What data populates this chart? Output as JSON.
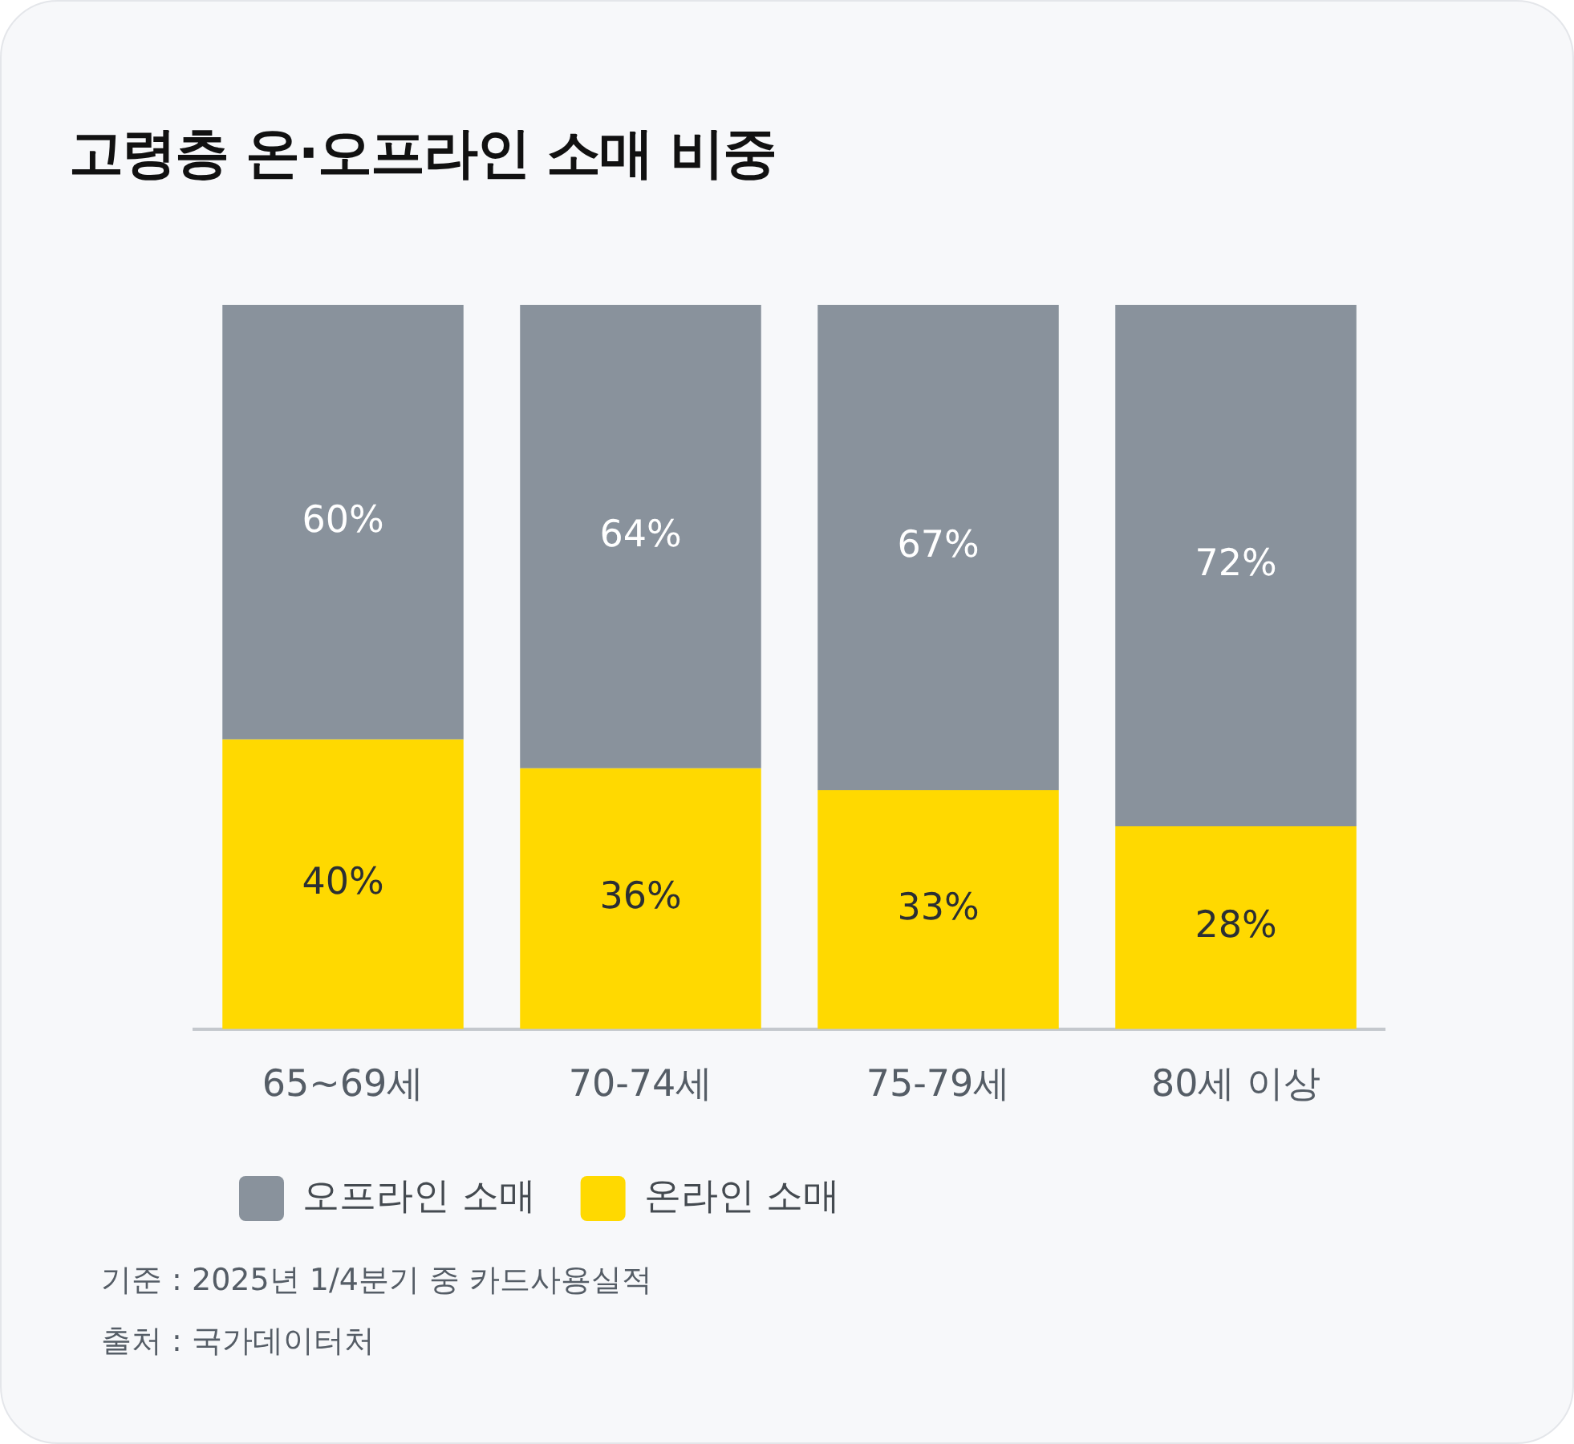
{
  "chart_data": {
    "type": "bar",
    "title": "고령층 온·오프라인 소매 비중",
    "categories": [
      "65~69세",
      "70-74세",
      "75-79세",
      "80세 이상"
    ],
    "stacked": true,
    "ylim": [
      0,
      100
    ],
    "legend": "bottom",
    "grid": false,
    "tick_labels": "x",
    "series": [
      {
        "name": "온라인 소매",
        "color": "#ffd900",
        "values": [
          40,
          36,
          33,
          28
        ],
        "value_labels": [
          "40%",
          "36%",
          "33%",
          "28%"
        ]
      },
      {
        "name": "오프라인 소매",
        "color": "#89929c",
        "values": [
          60,
          64,
          67,
          72
        ],
        "value_labels": [
          "60%",
          "64%",
          "67%",
          "72%"
        ]
      }
    ],
    "annotations": [
      "기준 : 2025년 1/4분기 중 카드사용실적",
      "출처 : 국가데이터처"
    ]
  }
}
